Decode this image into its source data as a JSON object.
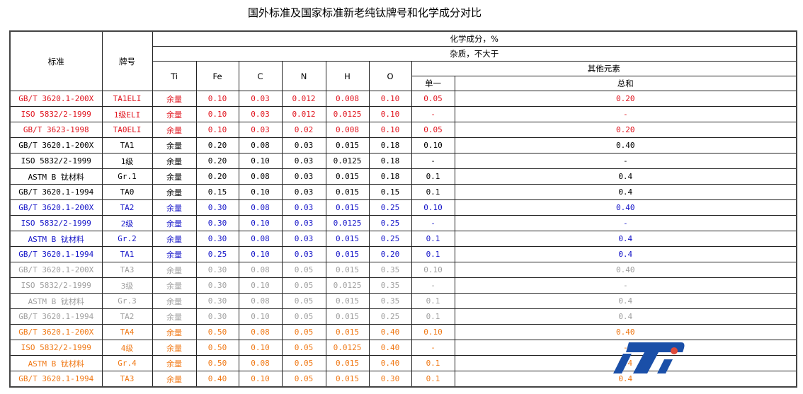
{
  "title": "国外标准及国家标准新老纯钛牌号和化学成分对比",
  "header": {
    "standard": "标准",
    "grade": "牌号",
    "composition": "化学成分，%",
    "impurity": "杂质，不大于",
    "others": "其他元素",
    "ti": "Ti",
    "fe": "Fe",
    "c": "C",
    "n": "N",
    "h": "H",
    "o": "O",
    "single": "单一",
    "total": "总和"
  },
  "colors": {
    "red": "#e0141e",
    "blue": "#1414c8",
    "gray": "#a0a0a0",
    "orange": "#f07814"
  },
  "rows": [
    [
      "GB/T 3620.1-200X",
      "TA1ELI",
      "余量",
      "0.10",
      "0.03",
      "0.012",
      "0.008",
      "0.10",
      "0.05",
      "0.20"
    ],
    [
      "ISO 5832/2-1999",
      "1级ELI",
      "余量",
      "0.10",
      "0.03",
      "0.012",
      "0.0125",
      "0.10",
      "-",
      "-"
    ],
    [
      "GB/T 3623-1998",
      "TA0ELI",
      "余量",
      "0.10",
      "0.03",
      "0.02",
      "0.008",
      "0.10",
      "0.05",
      "0.20"
    ],
    [
      "GB/T 3620.1-200X",
      "TA1",
      "余量",
      "0.20",
      "0.08",
      "0.03",
      "0.015",
      "0.18",
      "0.10",
      "0.40"
    ],
    [
      "ISO 5832/2-1999",
      "1级",
      "余量",
      "0.20",
      "0.10",
      "0.03",
      "0.0125",
      "0.18",
      "-",
      "-"
    ],
    [
      "ASTM B 钛材料",
      "Gr.1",
      "余量",
      "0.20",
      "0.08",
      "0.03",
      "0.015",
      "0.18",
      "0.1",
      "0.4"
    ],
    [
      "GB/T 3620.1-1994",
      "TA0",
      "余量",
      "0.15",
      "0.10",
      "0.03",
      "0.015",
      "0.15",
      "0.1",
      "0.4"
    ],
    [
      "GB/T 3620.1-200X",
      "TA2",
      "余量",
      "0.30",
      "0.08",
      "0.03",
      "0.015",
      "0.25",
      "0.10",
      "0.40"
    ],
    [
      "ISO 5832/2-1999",
      "2级",
      "余量",
      "0.30",
      "0.10",
      "0.03",
      "0.0125",
      "0.25",
      "-",
      "-"
    ],
    [
      "ASTM B 钛材料",
      "Gr.2",
      "余量",
      "0.30",
      "0.08",
      "0.03",
      "0.015",
      "0.25",
      "0.1",
      "0.4"
    ],
    [
      "GB/T 3620.1-1994",
      "TA1",
      "余量",
      "0.25",
      "0.10",
      "0.03",
      "0.015",
      "0.20",
      "0.1",
      "0.4"
    ],
    [
      "GB/T 3620.1-200X",
      "TA3",
      "余量",
      "0.30",
      "0.08",
      "0.05",
      "0.015",
      "0.35",
      "0.10",
      "0.40"
    ],
    [
      "ISO 5832/2-1999",
      "3级",
      "余量",
      "0.30",
      "0.10",
      "0.05",
      "0.0125",
      "0.35",
      "-",
      "-"
    ],
    [
      "ASTM B 钛材料",
      "Gr.3",
      "余量",
      "0.30",
      "0.08",
      "0.05",
      "0.015",
      "0.35",
      "0.1",
      "0.4"
    ],
    [
      "GB/T 3620.1-1994",
      "TA2",
      "余量",
      "0.30",
      "0.10",
      "0.05",
      "0.015",
      "0.25",
      "0.1",
      "0.4"
    ],
    [
      "GB/T 3620.1-200X",
      "TA4",
      "余量",
      "0.50",
      "0.08",
      "0.05",
      "0.015",
      "0.40",
      "0.10",
      "0.40"
    ],
    [
      "ISO 5832/2-1999",
      "4级",
      "余量",
      "0.50",
      "0.10",
      "0.05",
      "0.0125",
      "0.40",
      "-",
      "-"
    ],
    [
      "ASTM B 钛材料",
      "Gr.4",
      "余量",
      "0.50",
      "0.08",
      "0.05",
      "0.015",
      "0.40",
      "0.1",
      "0.4"
    ],
    [
      "GB/T 3620.1-1994",
      "TA3",
      "余量",
      "0.40",
      "0.10",
      "0.05",
      "0.015",
      "0.30",
      "0.1",
      "0.4"
    ]
  ],
  "row_groups": [
    "red",
    "red",
    "red",
    "black",
    "black",
    "black",
    "black",
    "blue",
    "blue",
    "blue",
    "blue",
    "gray",
    "gray",
    "gray",
    "gray",
    "orange",
    "orange",
    "orange",
    "orange"
  ],
  "logo": {
    "text": "iTi",
    "colors": [
      "#1a4fa8",
      "#e04a3a"
    ]
  }
}
